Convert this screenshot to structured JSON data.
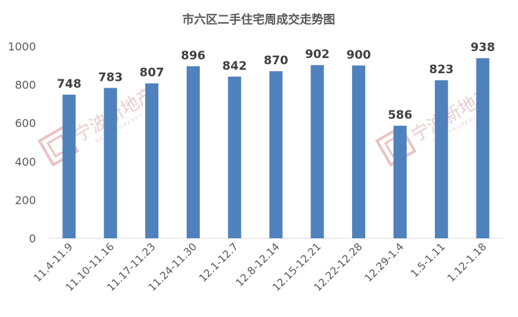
{
  "chart_data": {
    "type": "bar",
    "title": "市六区二手住宅周成交走势图",
    "categories": [
      "11.4-11.9",
      "11.10-11.16",
      "11.17-11.23",
      "11.24-11.30",
      "12.1-12.7",
      "12.8-12.14",
      "12.15-12.21",
      "12.22-12.28",
      "12.29-1.4",
      "1.5-1.11",
      "1.12-1.18"
    ],
    "values": [
      748,
      783,
      807,
      896,
      842,
      870,
      902,
      900,
      586,
      823,
      938
    ],
    "ylim": [
      0,
      1000
    ],
    "yticks": [
      0,
      200,
      400,
      600,
      800,
      1000
    ],
    "xlabel": "",
    "ylabel": "",
    "grid": false,
    "legend": "none",
    "bar_color": "#4f81bd",
    "data_labels": true
  },
  "watermark": {
    "text": "宁波新地产",
    "subtext": "NEW PROPERTY",
    "color": "#e7b9b9"
  }
}
